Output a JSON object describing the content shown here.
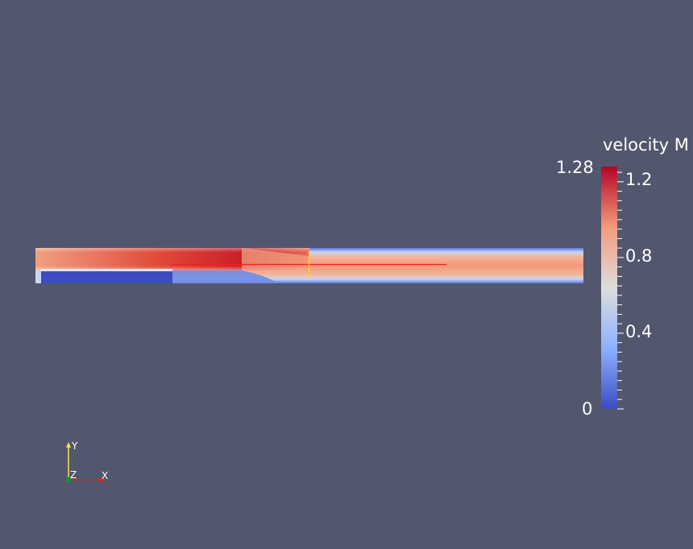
{
  "colorbar": {
    "title": "velocity M",
    "max_label": "1.28",
    "min_label": "0",
    "ticks": [
      {
        "label": "1.2",
        "value": 1.2
      },
      {
        "label": "0.8",
        "value": 0.8
      },
      {
        "label": "0.4",
        "value": 0.4
      }
    ],
    "range": [
      0,
      1.28
    ],
    "colors": [
      "#3b4cc0",
      "#8db0fe",
      "#dddddd",
      "#f49a7b",
      "#b40426"
    ]
  },
  "axes": {
    "x_label": "X",
    "y_label": "Y",
    "z_label": "Z",
    "x_color": "#d62728",
    "y_color": "#f5e642",
    "z_color": "#1f8a3a"
  },
  "probes": {
    "line_color": "#ff1a1a",
    "marker_color": "#ffd21f"
  }
}
